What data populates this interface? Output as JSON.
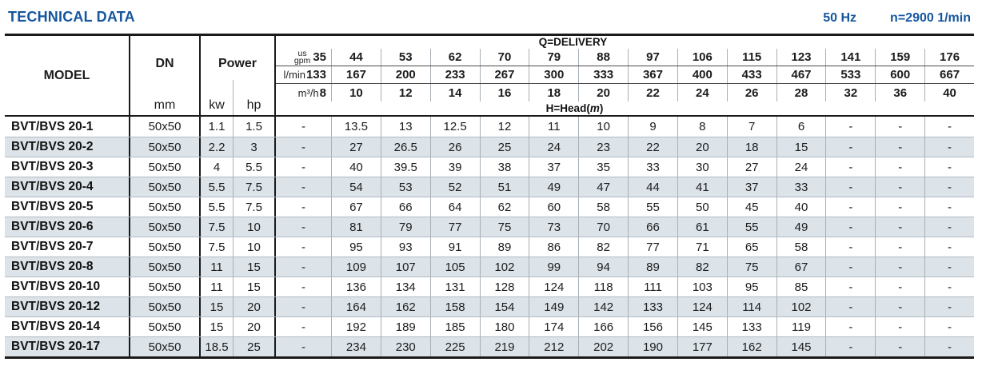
{
  "title": "TECHNICAL DATA",
  "frequency": "50 Hz",
  "speed": "n=2900 1/min",
  "colors": {
    "accent_blue": "#15569d",
    "row_alt": "#dce4ea",
    "grid_gray": "#a8afb6",
    "line_dark": "#1a1a1a"
  },
  "table": {
    "col_model": "MODEL",
    "col_dn": "DN",
    "col_dn_unit": "mm",
    "col_power": "Power",
    "col_power_kw": "kw",
    "col_power_hp": "hp",
    "delivery_label": "Q=DELIVERY",
    "head_prefix": "H=Head(",
    "head_unit": "m",
    "head_suffix": ")",
    "unit_gpm_line1": "us",
    "unit_gpm_line2": "gpm",
    "unit_lmin": "l/min",
    "unit_m3h": "m³/h",
    "gpm": [
      "35",
      "44",
      "53",
      "62",
      "70",
      "79",
      "88",
      "97",
      "106",
      "115",
      "123",
      "141",
      "159",
      "176"
    ],
    "lmin": [
      "133",
      "167",
      "200",
      "233",
      "267",
      "300",
      "333",
      "367",
      "400",
      "433",
      "467",
      "533",
      "600",
      "667"
    ],
    "m3h": [
      "8",
      "10",
      "12",
      "14",
      "16",
      "18",
      "20",
      "22",
      "24",
      "26",
      "28",
      "32",
      "36",
      "40"
    ],
    "rows": [
      {
        "model": "BVT/BVS 20-1",
        "dn": "50x50",
        "kw": "1.1",
        "hp": "1.5",
        "values": [
          "-",
          "13.5",
          "13",
          "12.5",
          "12",
          "11",
          "10",
          "9",
          "8",
          "7",
          "6",
          "-",
          "-",
          "-"
        ]
      },
      {
        "model": "BVT/BVS 20-2",
        "dn": "50x50",
        "kw": "2.2",
        "hp": "3",
        "values": [
          "-",
          "27",
          "26.5",
          "26",
          "25",
          "24",
          "23",
          "22",
          "20",
          "18",
          "15",
          "-",
          "-",
          "-"
        ]
      },
      {
        "model": "BVT/BVS 20-3",
        "dn": "50x50",
        "kw": "4",
        "hp": "5.5",
        "values": [
          "-",
          "40",
          "39.5",
          "39",
          "38",
          "37",
          "35",
          "33",
          "30",
          "27",
          "24",
          "-",
          "-",
          "-"
        ]
      },
      {
        "model": "BVT/BVS 20-4",
        "dn": "50x50",
        "kw": "5.5",
        "hp": "7.5",
        "values": [
          "-",
          "54",
          "53",
          "52",
          "51",
          "49",
          "47",
          "44",
          "41",
          "37",
          "33",
          "-",
          "-",
          "-"
        ]
      },
      {
        "model": "BVT/BVS 20-5",
        "dn": "50x50",
        "kw": "5.5",
        "hp": "7.5",
        "values": [
          "-",
          "67",
          "66",
          "64",
          "62",
          "60",
          "58",
          "55",
          "50",
          "45",
          "40",
          "-",
          "-",
          "-"
        ]
      },
      {
        "model": "BVT/BVS 20-6",
        "dn": "50x50",
        "kw": "7.5",
        "hp": "10",
        "values": [
          "-",
          "81",
          "79",
          "77",
          "75",
          "73",
          "70",
          "66",
          "61",
          "55",
          "49",
          "-",
          "-",
          "-"
        ]
      },
      {
        "model": "BVT/BVS 20-7",
        "dn": "50x50",
        "kw": "7.5",
        "hp": "10",
        "values": [
          "-",
          "95",
          "93",
          "91",
          "89",
          "86",
          "82",
          "77",
          "71",
          "65",
          "58",
          "-",
          "-",
          "-"
        ]
      },
      {
        "model": "BVT/BVS 20-8",
        "dn": "50x50",
        "kw": "11",
        "hp": "15",
        "values": [
          "-",
          "109",
          "107",
          "105",
          "102",
          "99",
          "94",
          "89",
          "82",
          "75",
          "67",
          "-",
          "-",
          "-"
        ]
      },
      {
        "model": "BVT/BVS 20-10",
        "dn": "50x50",
        "kw": "11",
        "hp": "15",
        "values": [
          "-",
          "136",
          "134",
          "131",
          "128",
          "124",
          "118",
          "111",
          "103",
          "95",
          "85",
          "-",
          "-",
          "-"
        ]
      },
      {
        "model": "BVT/BVS 20-12",
        "dn": "50x50",
        "kw": "15",
        "hp": "20",
        "values": [
          "-",
          "164",
          "162",
          "158",
          "154",
          "149",
          "142",
          "133",
          "124",
          "114",
          "102",
          "-",
          "-",
          "-"
        ]
      },
      {
        "model": "BVT/BVS 20-14",
        "dn": "50x50",
        "kw": "15",
        "hp": "20",
        "values": [
          "-",
          "192",
          "189",
          "185",
          "180",
          "174",
          "166",
          "156",
          "145",
          "133",
          "119",
          "-",
          "-",
          "-"
        ]
      },
      {
        "model": "BVT/BVS 20-17",
        "dn": "50x50",
        "kw": "18.5",
        "hp": "25",
        "values": [
          "-",
          "234",
          "230",
          "225",
          "219",
          "212",
          "202",
          "190",
          "177",
          "162",
          "145",
          "-",
          "-",
          "-"
        ]
      }
    ]
  }
}
